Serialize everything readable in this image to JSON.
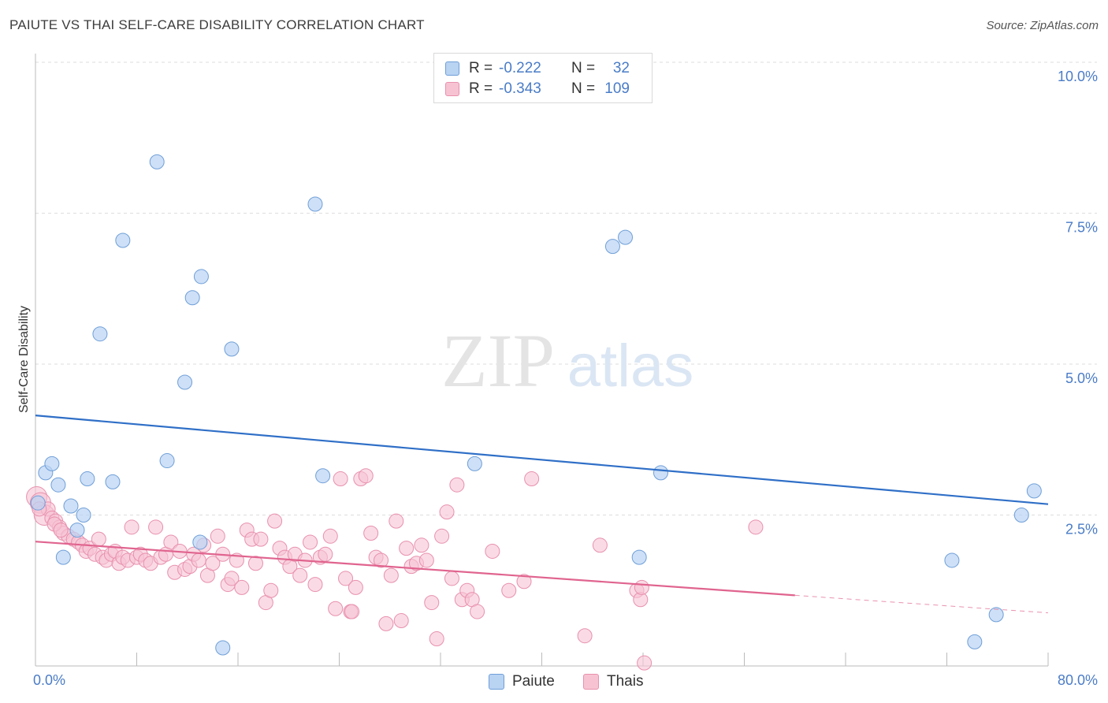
{
  "title": "PAIUTE VS THAI SELF-CARE DISABILITY CORRELATION CHART",
  "source": "Source: ZipAtlas.com",
  "watermark": {
    "zip": "ZIP",
    "atlas": "atlas"
  },
  "legend": {
    "rows": [
      {
        "r_label": "R =",
        "r_value": "-0.222",
        "n_label": "N =",
        "n_value": "32"
      },
      {
        "r_label": "R =",
        "r_value": "-0.343",
        "n_label": "N =",
        "n_value": "109"
      }
    ]
  },
  "bottom_legend": [
    "Paiute",
    "Thais"
  ],
  "colors": {
    "paiute_fill": "#b9d3f3",
    "paiute_stroke": "#6f9fd8",
    "paiute_line": "#2f6fc7",
    "thais_fill": "#f7c3d3",
    "thais_stroke": "#e890ad",
    "thais_line": "#e0648f",
    "tick_label": "#4a7cc7",
    "grid": "#dddddd"
  },
  "chart_data": {
    "type": "scatter",
    "ylabel": "Self-Care Disability",
    "xlabel": "",
    "xlim": [
      0,
      80
    ],
    "ylim": [
      0,
      10
    ],
    "x_tick_labels": [
      "0.0%",
      "80.0%"
    ],
    "y_ticks": [
      2.5,
      5.0,
      7.5,
      10.0
    ],
    "y_tick_labels": [
      "2.5%",
      "5.0%",
      "7.5%",
      "10.0%"
    ],
    "grid": true,
    "legend_position": "top-center",
    "series": [
      {
        "name": "Paiute",
        "points": [
          [
            0.2,
            2.7
          ],
          [
            0.8,
            3.2
          ],
          [
            1.3,
            3.35
          ],
          [
            1.8,
            3.0
          ],
          [
            2.2,
            1.8
          ],
          [
            2.8,
            2.65
          ],
          [
            3.3,
            2.25
          ],
          [
            3.8,
            2.5
          ],
          [
            4.1,
            3.1
          ],
          [
            5.1,
            5.5
          ],
          [
            6.1,
            3.05
          ],
          [
            6.9,
            7.05
          ],
          [
            9.6,
            8.35
          ],
          [
            10.4,
            3.4
          ],
          [
            11.8,
            4.7
          ],
          [
            12.4,
            6.1
          ],
          [
            13.1,
            6.45
          ],
          [
            14.8,
            0.3
          ],
          [
            15.5,
            5.25
          ],
          [
            22.1,
            7.65
          ],
          [
            22.7,
            3.15
          ],
          [
            34.7,
            3.35
          ],
          [
            45.6,
            6.95
          ],
          [
            46.6,
            7.1
          ],
          [
            47.7,
            1.8
          ],
          [
            49.4,
            3.2
          ],
          [
            72.4,
            1.75
          ],
          [
            74.2,
            0.4
          ],
          [
            75.9,
            0.85
          ],
          [
            77.9,
            2.5
          ],
          [
            78.9,
            2.9
          ],
          [
            13.0,
            2.05
          ]
        ]
      },
      {
        "name": "Thais",
        "points": [
          [
            0.1,
            2.8
          ],
          [
            0.4,
            2.7
          ],
          [
            0.7,
            2.5
          ],
          [
            1.0,
            2.6
          ],
          [
            1.3,
            2.45
          ],
          [
            1.6,
            2.4
          ],
          [
            1.9,
            2.3
          ],
          [
            2.2,
            2.2
          ],
          [
            2.6,
            2.15
          ],
          [
            3.0,
            2.1
          ],
          [
            3.4,
            2.05
          ],
          [
            3.7,
            2.0
          ],
          [
            4.0,
            1.9
          ],
          [
            4.3,
            1.95
          ],
          [
            4.7,
            1.85
          ],
          [
            5.0,
            2.1
          ],
          [
            5.3,
            1.8
          ],
          [
            5.6,
            1.75
          ],
          [
            6.0,
            1.85
          ],
          [
            6.3,
            1.9
          ],
          [
            6.6,
            1.7
          ],
          [
            6.9,
            1.8
          ],
          [
            7.3,
            1.75
          ],
          [
            7.6,
            2.3
          ],
          [
            8.0,
            1.8
          ],
          [
            8.3,
            1.85
          ],
          [
            8.7,
            1.75
          ],
          [
            9.1,
            1.7
          ],
          [
            9.5,
            2.3
          ],
          [
            9.9,
            1.8
          ],
          [
            10.3,
            1.85
          ],
          [
            10.7,
            2.05
          ],
          [
            11.0,
            1.55
          ],
          [
            11.4,
            1.9
          ],
          [
            11.8,
            1.6
          ],
          [
            12.2,
            1.65
          ],
          [
            12.5,
            1.85
          ],
          [
            12.9,
            1.75
          ],
          [
            13.3,
            2.0
          ],
          [
            13.6,
            1.5
          ],
          [
            14.0,
            1.7
          ],
          [
            14.4,
            2.15
          ],
          [
            14.8,
            1.85
          ],
          [
            15.2,
            1.35
          ],
          [
            15.5,
            1.45
          ],
          [
            15.9,
            1.75
          ],
          [
            16.3,
            1.3
          ],
          [
            16.7,
            2.25
          ],
          [
            17.1,
            2.1
          ],
          [
            17.4,
            1.7
          ],
          [
            17.8,
            2.1
          ],
          [
            18.2,
            1.05
          ],
          [
            18.6,
            1.25
          ],
          [
            18.9,
            2.4
          ],
          [
            19.3,
            1.95
          ],
          [
            19.7,
            1.8
          ],
          [
            20.1,
            1.65
          ],
          [
            20.5,
            1.85
          ],
          [
            20.9,
            1.5
          ],
          [
            21.3,
            1.75
          ],
          [
            21.7,
            2.05
          ],
          [
            22.1,
            1.35
          ],
          [
            22.5,
            1.8
          ],
          [
            22.9,
            1.85
          ],
          [
            23.3,
            2.15
          ],
          [
            23.7,
            0.95
          ],
          [
            24.1,
            3.1
          ],
          [
            24.5,
            1.45
          ],
          [
            24.9,
            0.9
          ],
          [
            25.3,
            1.3
          ],
          [
            25.7,
            3.1
          ],
          [
            26.1,
            3.15
          ],
          [
            26.5,
            2.2
          ],
          [
            26.9,
            1.8
          ],
          [
            27.3,
            1.75
          ],
          [
            27.7,
            0.7
          ],
          [
            28.1,
            1.5
          ],
          [
            28.5,
            2.4
          ],
          [
            28.9,
            0.75
          ],
          [
            29.3,
            1.95
          ],
          [
            29.7,
            1.65
          ],
          [
            30.1,
            1.7
          ],
          [
            30.5,
            2.0
          ],
          [
            30.9,
            1.75
          ],
          [
            31.3,
            1.05
          ],
          [
            31.7,
            0.45
          ],
          [
            32.1,
            2.15
          ],
          [
            32.5,
            2.55
          ],
          [
            32.9,
            1.45
          ],
          [
            33.3,
            3.0
          ],
          [
            33.7,
            1.1
          ],
          [
            34.1,
            1.25
          ],
          [
            34.5,
            1.1
          ],
          [
            34.9,
            0.9
          ],
          [
            36.1,
            1.9
          ],
          [
            37.4,
            1.25
          ],
          [
            38.6,
            1.4
          ],
          [
            39.2,
            3.1
          ],
          [
            43.4,
            0.5
          ],
          [
            44.6,
            2.0
          ],
          [
            47.5,
            1.25
          ],
          [
            47.8,
            1.1
          ],
          [
            47.9,
            1.3
          ],
          [
            48.1,
            0.05
          ],
          [
            56.9,
            2.3
          ],
          [
            0.3,
            2.6
          ],
          [
            1.5,
            2.35
          ],
          [
            2.0,
            2.25
          ],
          [
            25.0,
            0.9
          ]
        ]
      }
    ],
    "trendlines": [
      {
        "series": "Paiute",
        "x": [
          0,
          80
        ],
        "y": [
          4.15,
          2.68
        ],
        "style": "solid"
      },
      {
        "series": "Thais",
        "x": [
          0,
          60
        ],
        "y": [
          2.06,
          1.17
        ],
        "style": "solid"
      },
      {
        "series": "Thais",
        "x": [
          60,
          80
        ],
        "y": [
          1.17,
          0.88
        ],
        "style": "dashed"
      }
    ]
  }
}
